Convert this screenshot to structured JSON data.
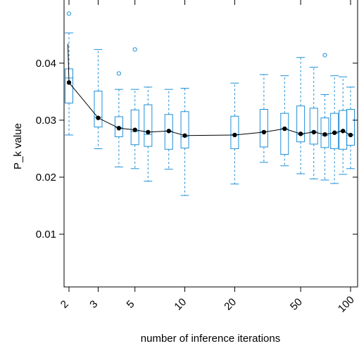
{
  "chart_data": {
    "type": "box",
    "xlabel": "number of inference iterations",
    "ylabel": "P_k value",
    "x_scale": "log",
    "x_range": [
      1.97,
      105
    ],
    "y_range": [
      0.0,
      0.05
    ],
    "x_ticks": [
      {
        "value": 2,
        "label": "2"
      },
      {
        "value": 3,
        "label": "3"
      },
      {
        "value": 5,
        "label": "5"
      },
      {
        "value": 10,
        "label": "10"
      },
      {
        "value": 20,
        "label": "20"
      },
      {
        "value": 50,
        "label": "50"
      },
      {
        "value": 100,
        "label": "100"
      }
    ],
    "y_ticks": [
      {
        "value": 0.01,
        "label": "0.01"
      },
      {
        "value": 0.02,
        "label": "0.02"
      },
      {
        "value": 0.03,
        "label": "0.03"
      },
      {
        "value": 0.04,
        "label": "0.04"
      }
    ],
    "boxes": [
      {
        "x": 2,
        "whisker_low": 0.0274,
        "q1": 0.033,
        "median": 0.0374,
        "q3": 0.039,
        "whisker_high": 0.0453,
        "outliers": [
          0.0487
        ]
      },
      {
        "x": 3,
        "whisker_low": 0.025,
        "q1": 0.0288,
        "median": 0.0305,
        "q3": 0.0351,
        "whisker_high": 0.0424,
        "outliers": []
      },
      {
        "x": 4,
        "whisker_low": 0.0218,
        "q1": 0.0271,
        "median": 0.0287,
        "q3": 0.0306,
        "whisker_high": 0.0354,
        "outliers": [
          0.0382
        ]
      },
      {
        "x": 5,
        "whisker_low": 0.0215,
        "q1": 0.0257,
        "median": 0.028,
        "q3": 0.0318,
        "whisker_high": 0.0354,
        "outliers": [
          0.0424
        ]
      },
      {
        "x": 6,
        "whisker_low": 0.0193,
        "q1": 0.0254,
        "median": 0.0275,
        "q3": 0.0327,
        "whisker_high": 0.0358,
        "outliers": []
      },
      {
        "x": 8,
        "whisker_low": 0.0214,
        "q1": 0.0249,
        "median": 0.0281,
        "q3": 0.031,
        "whisker_high": 0.0354,
        "outliers": []
      },
      {
        "x": 10,
        "whisker_low": 0.0168,
        "q1": 0.0251,
        "median": 0.0271,
        "q3": 0.0315,
        "whisker_high": 0.0356,
        "outliers": []
      },
      {
        "x": 20,
        "whisker_low": 0.0188,
        "q1": 0.025,
        "median": 0.0275,
        "q3": 0.0307,
        "whisker_high": 0.0365,
        "outliers": []
      },
      {
        "x": 30,
        "whisker_low": 0.0226,
        "q1": 0.0253,
        "median": 0.028,
        "q3": 0.0319,
        "whisker_high": 0.038,
        "outliers": []
      },
      {
        "x": 40,
        "whisker_low": 0.022,
        "q1": 0.024,
        "median": 0.0285,
        "q3": 0.0312,
        "whisker_high": 0.0378,
        "outliers": []
      },
      {
        "x": 50,
        "whisker_low": 0.0206,
        "q1": 0.0262,
        "median": 0.0275,
        "q3": 0.0325,
        "whisker_high": 0.041,
        "outliers": []
      },
      {
        "x": 60,
        "whisker_low": 0.0197,
        "q1": 0.0258,
        "median": 0.028,
        "q3": 0.0321,
        "whisker_high": 0.0393,
        "outliers": []
      },
      {
        "x": 70,
        "whisker_low": 0.0195,
        "q1": 0.0252,
        "median": 0.0273,
        "q3": 0.0304,
        "whisker_high": 0.0345,
        "outliers": [
          0.0414
        ]
      },
      {
        "x": 80,
        "whisker_low": 0.0189,
        "q1": 0.025,
        "median": 0.0277,
        "q3": 0.0312,
        "whisker_high": 0.0378,
        "outliers": []
      },
      {
        "x": 90,
        "whisker_low": 0.0205,
        "q1": 0.0249,
        "median": 0.0281,
        "q3": 0.0317,
        "whisker_high": 0.0376,
        "outliers": []
      },
      {
        "x": 100,
        "whisker_low": 0.0215,
        "q1": 0.0256,
        "median": 0.0274,
        "q3": 0.0319,
        "whisker_high": 0.0358,
        "outliers": []
      }
    ],
    "mean_curve": {
      "points": [
        {
          "x": 1.97,
          "y": 0.0434
        },
        {
          "x": 2,
          "y": 0.0366
        },
        {
          "x": 3,
          "y": 0.0304
        },
        {
          "x": 4,
          "y": 0.0286
        },
        {
          "x": 5,
          "y": 0.0283
        },
        {
          "x": 6,
          "y": 0.0279
        },
        {
          "x": 8,
          "y": 0.0281
        },
        {
          "x": 10,
          "y": 0.0273
        },
        {
          "x": 20,
          "y": 0.0274
        },
        {
          "x": 30,
          "y": 0.0279
        },
        {
          "x": 40,
          "y": 0.0285
        },
        {
          "x": 50,
          "y": 0.0276
        },
        {
          "x": 60,
          "y": 0.0279
        },
        {
          "x": 70,
          "y": 0.0275
        },
        {
          "x": 80,
          "y": 0.0278
        },
        {
          "x": 90,
          "y": 0.0281
        },
        {
          "x": 100,
          "y": 0.0274
        }
      ]
    },
    "colors": {
      "box": "#1f8fd8",
      "mean_line": "#000000",
      "frame": "#000000"
    },
    "grid": false,
    "legend": "none"
  }
}
